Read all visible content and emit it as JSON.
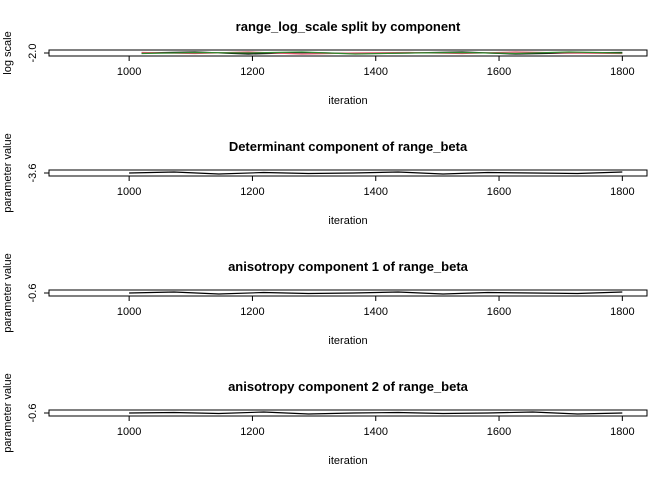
{
  "chart_data": [
    {
      "type": "line",
      "title": "range_log_scale split by component",
      "xlabel": "iteration",
      "ylabel": "log scale",
      "xlim": [
        870,
        1840
      ],
      "x_ticks": [
        1000,
        1200,
        1400,
        1600,
        1800
      ],
      "y_ticks": [
        "-2.0"
      ],
      "ylim": [
        -2.06,
        -1.94
      ],
      "series": [
        {
          "color": "#000000",
          "x_start": 1020,
          "x_end": 1800,
          "values": [
            -2.0,
            -1.98,
            -2.02,
            -1.99,
            -2.01,
            -2.0,
            -1.98,
            -2.02,
            -2.0,
            -1.99
          ]
        },
        {
          "color": "#DF536B",
          "x_start": 1020,
          "x_end": 1800,
          "values": [
            -1.99,
            -2.01,
            -1.98,
            -2.02,
            -2.0,
            -1.99,
            -2.01,
            -1.98,
            -2.0,
            -2.01
          ]
        },
        {
          "color": "#2E8B2E",
          "x_start": 1020,
          "x_end": 1800,
          "values": [
            -2.01,
            -1.99,
            -2.0,
            -1.98,
            -2.02,
            -2.0,
            -1.99,
            -2.01,
            -1.98,
            -2.0
          ]
        }
      ]
    },
    {
      "type": "line",
      "title": "Determinant component of range_beta",
      "xlabel": "iteration",
      "ylabel": "parameter value",
      "xlim": [
        870,
        1840
      ],
      "x_ticks": [
        1000,
        1200,
        1400,
        1600,
        1800
      ],
      "y_ticks": [
        "-3.6"
      ],
      "ylim": [
        -3.66,
        -3.54
      ],
      "series": [
        {
          "color": "#000000",
          "x_start": 1000,
          "x_end": 1800,
          "values": [
            -3.6,
            -3.58,
            -3.62,
            -3.59,
            -3.61,
            -3.6,
            -3.58,
            -3.62,
            -3.59,
            -3.6,
            -3.61,
            -3.58
          ]
        }
      ]
    },
    {
      "type": "line",
      "title": "anisotropy component 1 of range_beta",
      "xlabel": "iteration",
      "ylabel": "parameter value",
      "xlim": [
        870,
        1840
      ],
      "x_ticks": [
        1000,
        1200,
        1400,
        1600,
        1800
      ],
      "y_ticks": [
        "-0.6"
      ],
      "ylim": [
        -0.66,
        -0.54
      ],
      "series": [
        {
          "color": "#000000",
          "x_start": 1000,
          "x_end": 1800,
          "values": [
            -0.6,
            -0.58,
            -0.62,
            -0.59,
            -0.61,
            -0.6,
            -0.58,
            -0.62,
            -0.59,
            -0.6,
            -0.61,
            -0.58
          ]
        }
      ]
    },
    {
      "type": "line",
      "title": "anisotropy component 2 of range_beta",
      "xlabel": "iteration",
      "ylabel": "parameter value",
      "xlim": [
        870,
        1840
      ],
      "x_ticks": [
        1000,
        1200,
        1400,
        1600,
        1800
      ],
      "y_ticks": [
        "-0.6"
      ],
      "ylim": [
        -0.66,
        -0.54
      ],
      "series": [
        {
          "color": "#000000",
          "x_start": 1000,
          "x_end": 1800,
          "values": [
            -0.6,
            -0.59,
            -0.61,
            -0.58,
            -0.62,
            -0.6,
            -0.59,
            -0.61,
            -0.6,
            -0.58,
            -0.62,
            -0.6
          ]
        }
      ]
    }
  ]
}
